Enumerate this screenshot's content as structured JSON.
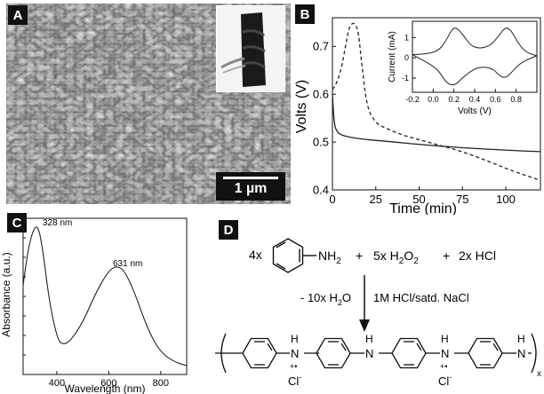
{
  "panels": {
    "a": {
      "label": "A",
      "scale_bar": "1 µm"
    },
    "b": {
      "label": "B",
      "xlabel": "Time (min)",
      "ylabel": "Volts (V)",
      "x_ticks": [
        "0",
        "25",
        "50",
        "75",
        "100"
      ],
      "y_ticks": [
        "0.4",
        "0.5",
        "0.6",
        "0.7"
      ],
      "inset": {
        "xlabel": "Volts (V)",
        "ylabel": "Current (mA)",
        "x_ticks": [
          "-0.2",
          "0.0",
          "0.2",
          "0.4",
          "0.6",
          "0.8"
        ],
        "y_ticks": [
          "1",
          "0",
          "-1"
        ]
      }
    },
    "c": {
      "label": "C",
      "xlabel": "Wavelength (nm)",
      "ylabel": "Absorbance (a.u.)",
      "x_ticks": [
        "400",
        "600",
        "800"
      ],
      "peak1": "328 nm",
      "peak2": "631 nm"
    },
    "d": {
      "label": "D",
      "reactants": {
        "coef1": "4x",
        "amine": "NH",
        "amine_sub": "2",
        "plus1": "+",
        "h2o2": "5x H",
        "h2o2_sub1": "2",
        "h2o2_o": "O",
        "h2o2_sub2": "2",
        "plus2": "+",
        "hcl": "2x HCl"
      },
      "byproduct": "- 10x H",
      "byproduct_sub": "2",
      "byproduct_o": "O",
      "conditions": "1M HCl/satd. NaCl",
      "product": {
        "n1": "N",
        "h1": "H",
        "radical1": "+•",
        "cl1": "Cl",
        "n2": "N",
        "h2": "H",
        "n3": "N",
        "h3": "H",
        "radical2": "+•",
        "cl2": "Cl",
        "n4": "N",
        "h4": "H",
        "cl_charge": "-",
        "subscript": "x"
      }
    }
  },
  "chart_data": [
    {
      "type": "line",
      "xlabel": "Time (min)",
      "ylabel": "Volts (V)",
      "xlim": [
        0,
        120
      ],
      "ylim": [
        0.4,
        0.76
      ],
      "series": [
        {
          "style": "solid",
          "x": [
            0,
            1,
            3,
            5,
            10,
            20,
            30,
            50,
            75,
            100,
            120
          ],
          "y": [
            0.6,
            0.535,
            0.52,
            0.515,
            0.51,
            0.505,
            0.502,
            0.495,
            0.488,
            0.483,
            0.48
          ]
        },
        {
          "style": "dashed",
          "x": [
            0,
            2,
            5,
            8,
            10,
            13,
            15,
            17,
            20,
            25,
            30,
            40,
            50,
            60,
            75,
            90,
            100,
            110,
            120
          ],
          "y": [
            0.61,
            0.62,
            0.65,
            0.71,
            0.745,
            0.75,
            0.73,
            0.66,
            0.57,
            0.54,
            0.53,
            0.515,
            0.505,
            0.495,
            0.48,
            0.46,
            0.445,
            0.432,
            0.42
          ]
        }
      ]
    },
    {
      "type": "line",
      "xlabel": "Volts (V)",
      "ylabel": "Current (mA)",
      "xlim": [
        -0.2,
        1.0
      ],
      "ylim": [
        -1.7,
        1.8
      ],
      "series": [
        {
          "style": "solid",
          "x": [
            -0.2,
            -0.05,
            0.05,
            0.12,
            0.2,
            0.28,
            0.36,
            0.45,
            0.55,
            0.62,
            0.7,
            0.76,
            0.82,
            0.9,
            1.0
          ],
          "y": [
            0.15,
            0.2,
            0.35,
            0.8,
            1.6,
            1.2,
            0.6,
            0.45,
            0.6,
            1.0,
            1.55,
            1.3,
            0.7,
            0.25,
            0.1
          ]
        },
        {
          "style": "solid",
          "x": [
            1.0,
            0.9,
            0.82,
            0.76,
            0.7,
            0.64,
            0.58,
            0.5,
            0.42,
            0.35,
            0.28,
            0.2,
            0.12,
            0.05,
            -0.05,
            -0.2
          ],
          "y": [
            0.1,
            -0.1,
            -0.35,
            -0.7,
            -1.0,
            -0.9,
            -0.55,
            -0.45,
            -0.5,
            -0.7,
            -1.0,
            -1.4,
            -1.2,
            -0.6,
            -0.25,
            0.15
          ]
        }
      ]
    },
    {
      "type": "line",
      "xlabel": "Wavelength (nm)",
      "ylabel": "Absorbance (a.u.)",
      "xlim": [
        270,
        900
      ],
      "ylim": [
        0,
        1.05
      ],
      "series": [
        {
          "style": "solid",
          "x": [
            270,
            290,
            310,
            328,
            345,
            370,
            400,
            420,
            450,
            500,
            550,
            600,
            631,
            660,
            700,
            740,
            780,
            820,
            860,
            900
          ],
          "y": [
            0.6,
            0.85,
            0.98,
            1.0,
            0.85,
            0.5,
            0.25,
            0.2,
            0.22,
            0.35,
            0.55,
            0.7,
            0.73,
            0.7,
            0.55,
            0.35,
            0.2,
            0.12,
            0.08,
            0.06
          ]
        }
      ]
    }
  ]
}
